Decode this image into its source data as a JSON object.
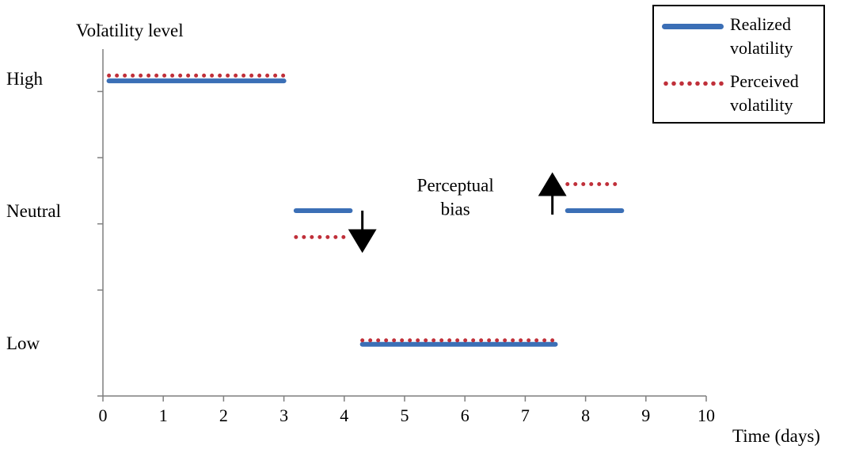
{
  "chart_data": {
    "type": "line",
    "ylabel": "Volatility level",
    "xlabel": "Time (days)",
    "xlim": [
      0,
      10
    ],
    "x_ticks": [
      "0",
      "1",
      "2",
      "3",
      "4",
      "5",
      "6",
      "7",
      "8",
      "9",
      "10"
    ],
    "y_levels": [
      {
        "label": "High",
        "value": 3
      },
      {
        "label": "Neutral",
        "value": 2
      },
      {
        "label": "Low",
        "value": 1
      }
    ],
    "ylim": [
      0.6,
      3.22
    ],
    "grid": false,
    "legend_position": "top-right",
    "series": [
      {
        "name": "Realized volatility",
        "style": "solid",
        "color": "#3b6fb6",
        "segments": [
          {
            "x": [
              0.1,
              3.0
            ],
            "y": 2.98
          },
          {
            "x": [
              3.2,
              4.1
            ],
            "y": 2.0
          },
          {
            "x": [
              4.3,
              7.5
            ],
            "y": 0.99
          },
          {
            "x": [
              7.7,
              8.6
            ],
            "y": 2.0
          }
        ]
      },
      {
        "name": "Perceived volatility",
        "style": "dotted",
        "color": "#c0303a",
        "segments": [
          {
            "x": [
              0.1,
              3.0
            ],
            "y": 3.02
          },
          {
            "x": [
              3.2,
              4.1
            ],
            "y": 1.8
          },
          {
            "x": [
              4.3,
              7.5
            ],
            "y": 1.02
          },
          {
            "x": [
              7.7,
              8.6
            ],
            "y": 2.2
          }
        ]
      }
    ],
    "annotations": [
      {
        "text": "Perceptual\nbias",
        "x": 6.0,
        "y": 2.05
      },
      {
        "type": "arrow",
        "direction": "down",
        "x": 4.3,
        "y_from": 2.0,
        "y_to": 1.77
      },
      {
        "type": "arrow",
        "direction": "up",
        "x": 7.45,
        "y_from": 1.97,
        "y_to": 2.2
      }
    ]
  }
}
